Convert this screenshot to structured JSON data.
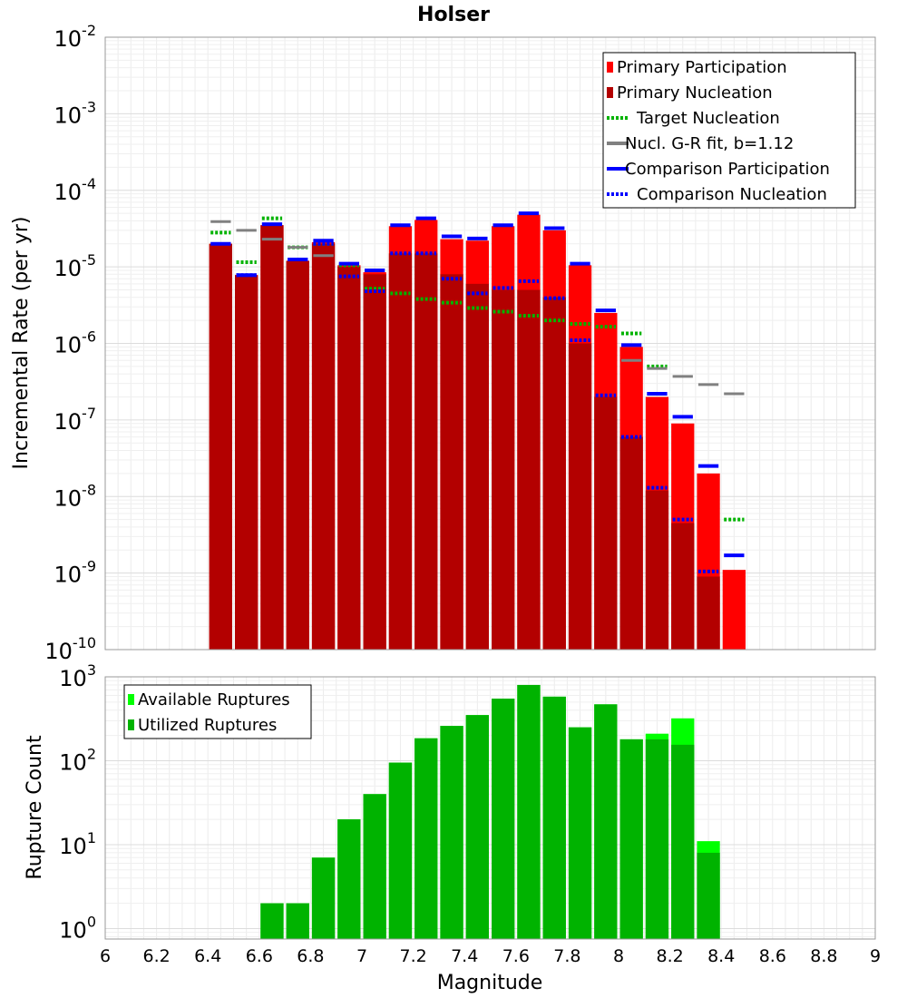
{
  "chart_data": [
    {
      "type": "bar",
      "title": "Holser",
      "xlabel": "",
      "ylabel": "Incremental Rate (per yr)",
      "xlim": [
        6,
        9
      ],
      "ylim": [
        1e-10,
        0.01
      ],
      "log_y": true,
      "grid": true,
      "legend_position": "top-right",
      "legend": [
        {
          "label": "Primary Participation",
          "style": "box",
          "color": "#ff0000"
        },
        {
          "label": "Primary Nucleation",
          "style": "box",
          "color": "#b30000"
        },
        {
          "label": "Target Nucleation",
          "style": "dotted",
          "color": "#00b300"
        },
        {
          "label": "Nucl. G-R fit, b=1.12",
          "style": "solid",
          "color": "#808080"
        },
        {
          "label": "Comparison Participation",
          "style": "solid",
          "color": "#0000ff"
        },
        {
          "label": "Comparison Nucleation",
          "style": "dotted",
          "color": "#0000ff"
        }
      ],
      "x": [
        6.45,
        6.55,
        6.65,
        6.75,
        6.85,
        6.95,
        7.05,
        7.15,
        7.25,
        7.35,
        7.45,
        7.55,
        7.65,
        7.75,
        7.85,
        7.95,
        8.05,
        8.15,
        8.25,
        8.35,
        8.45
      ],
      "series": [
        {
          "name": "Primary Participation",
          "kind": "bar",
          "color": "#ff0000",
          "values": [
            2e-05,
            7.8e-06,
            3.5e-05,
            1.2e-05,
            2.1e-05,
            1.05e-05,
            8.5e-06,
            3.4e-05,
            4.1e-05,
            2.3e-05,
            2.2e-05,
            3.4e-05,
            4.8e-05,
            3e-05,
            1.05e-05,
            2.5e-06,
            9e-07,
            2e-07,
            9e-08,
            2e-08,
            1.1e-09
          ]
        },
        {
          "name": "Primary Nucleation",
          "kind": "bar",
          "color": "#b30000",
          "values": [
            2e-05,
            7.8e-06,
            3.5e-05,
            1.2e-05,
            2e-05,
            1e-05,
            8e-06,
            1.5e-05,
            1.5e-05,
            8e-06,
            6e-06,
            5e-06,
            5e-06,
            4e-06,
            1e-06,
            2e-07,
            6e-08,
            1.2e-08,
            4.5e-09,
            9e-10,
            1e-10
          ]
        },
        {
          "name": "Target Nucleation",
          "kind": "level",
          "style": "dotted",
          "color": "#00b300",
          "values": [
            2.8e-05,
            1.15e-05,
            4.3e-05,
            1.8e-05,
            2e-05,
            1.05e-05,
            5.2e-06,
            4.5e-06,
            3.8e-06,
            3.4e-06,
            2.9e-06,
            2.6e-06,
            2.3e-06,
            2e-06,
            1.8e-06,
            1.65e-06,
            1.35e-06,
            5e-07,
            null,
            null,
            5e-09
          ]
        },
        {
          "name": "Nucl. G-R fit, b=1.12",
          "kind": "level",
          "style": "solid",
          "color": "#808080",
          "x": [
            6.45,
            6.55,
            6.65,
            6.75,
            6.85,
            8.05,
            8.15,
            8.25,
            8.35,
            8.45
          ],
          "values": [
            3.9e-05,
            3e-05,
            2.3e-05,
            1.8e-05,
            1.4e-05,
            6e-07,
            4.7e-07,
            3.7e-07,
            2.9e-07,
            2.2e-07
          ]
        },
        {
          "name": "Comparison Participation",
          "kind": "level",
          "style": "solid",
          "color": "#0000ff",
          "values": [
            2e-05,
            7.8e-06,
            3.6e-05,
            1.25e-05,
            2.2e-05,
            1.1e-05,
            9e-06,
            3.5e-05,
            4.3e-05,
            2.5e-05,
            2.35e-05,
            3.5e-05,
            5e-05,
            3.2e-05,
            1.1e-05,
            2.7e-06,
            9.5e-07,
            2.2e-07,
            1.1e-07,
            2.5e-08,
            1.7e-09
          ]
        },
        {
          "name": "Comparison Nucleation",
          "kind": "level",
          "style": "dotted",
          "color": "#0000ff",
          "values": [
            null,
            7.8e-06,
            null,
            null,
            2e-05,
            7.5e-06,
            4.8e-06,
            1.5e-05,
            1.5e-05,
            7e-06,
            4.5e-06,
            5.3e-06,
            6.5e-06,
            3.9e-06,
            1.1e-06,
            2.1e-07,
            6e-08,
            1.3e-08,
            5e-09,
            1.05e-09,
            null
          ]
        }
      ]
    },
    {
      "type": "bar",
      "title": "",
      "xlabel": "Magnitude",
      "ylabel": "Rupture Count",
      "xlim": [
        6,
        9
      ],
      "ylim": [
        0.75,
        1000
      ],
      "log_y": true,
      "grid": true,
      "legend_position": "top-left",
      "legend": [
        {
          "label": "Available Ruptures",
          "style": "box",
          "color": "#00ff00"
        },
        {
          "label": "Utilized Ruptures",
          "style": "box",
          "color": "#00b300"
        }
      ],
      "x": [
        6.65,
        6.75,
        6.85,
        6.95,
        7.05,
        7.15,
        7.25,
        7.35,
        7.45,
        7.55,
        7.65,
        7.75,
        7.85,
        7.95,
        8.05,
        8.15,
        8.25,
        8.35
      ],
      "series": [
        {
          "name": "Available Ruptures",
          "kind": "bar",
          "color": "#00ff00",
          "values": [
            2,
            2,
            7,
            20,
            40,
            95,
            185,
            260,
            350,
            550,
            800,
            580,
            250,
            470,
            180,
            210,
            320,
            11
          ]
        },
        {
          "name": "Utilized Ruptures",
          "kind": "bar",
          "color": "#00b300",
          "values": [
            2,
            2,
            7,
            20,
            40,
            95,
            185,
            260,
            350,
            550,
            800,
            580,
            250,
            470,
            180,
            180,
            155,
            8
          ]
        }
      ]
    }
  ],
  "x_ticks": [
    "6",
    "6.2",
    "6.4",
    "6.6",
    "6.8",
    "7",
    "7.2",
    "7.4",
    "7.6",
    "7.8",
    "8",
    "8.2",
    "8.4",
    "8.6",
    "8.8",
    "9"
  ],
  "top_y_ticks": [
    {
      "base": "10",
      "exp": "-2"
    },
    {
      "base": "10",
      "exp": "-3"
    },
    {
      "base": "10",
      "exp": "-4"
    },
    {
      "base": "10",
      "exp": "-5"
    },
    {
      "base": "10",
      "exp": "-6"
    },
    {
      "base": "10",
      "exp": "-7"
    },
    {
      "base": "10",
      "exp": "-8"
    },
    {
      "base": "10",
      "exp": "-9"
    },
    {
      "base": "10",
      "exp": "-10"
    }
  ],
  "bottom_y_ticks": [
    {
      "base": "10",
      "exp": "3"
    },
    {
      "base": "10",
      "exp": "2"
    },
    {
      "base": "10",
      "exp": "1"
    },
    {
      "base": "10",
      "exp": "0"
    }
  ]
}
